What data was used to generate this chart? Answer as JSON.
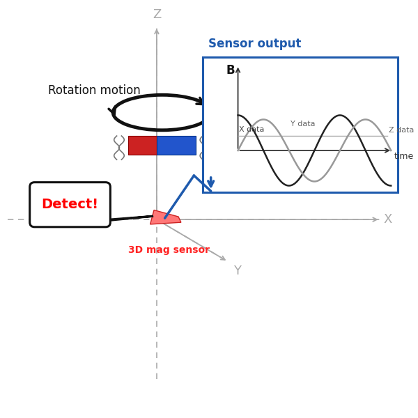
{
  "bg_color": "#ffffff",
  "axis_color": "#aaaaaa",
  "dashed_color": "#aaaaaa",
  "z_axis_label": "Z",
  "y_axis_label": "Y",
  "x_axis_label": "X",
  "rotation_motion_label": "Rotation motion",
  "sensor_output_label": "Sensor output",
  "sensor_output_color": "#1e5aad",
  "b_label": "B",
  "x_data_label": "X data",
  "y_data_label": "Y data",
  "z_data_label": "Z data",
  "time_label": "time",
  "detect_label": "Detect!",
  "detect_color": "#ff0000",
  "sensor_label": "3D mag sensor",
  "sensor_label_color": "#ff2222",
  "magnet_red": "#cc2222",
  "magnet_blue": "#2255cc",
  "sensor_chip_color": "#ff7777",
  "wave_color_x": "#222222",
  "wave_color_y": "#999999",
  "wave_color_z": "#aaaaaa",
  "ellipse_color": "#111111",
  "bubble_border": "#111111",
  "arrow_gray": "#888888"
}
